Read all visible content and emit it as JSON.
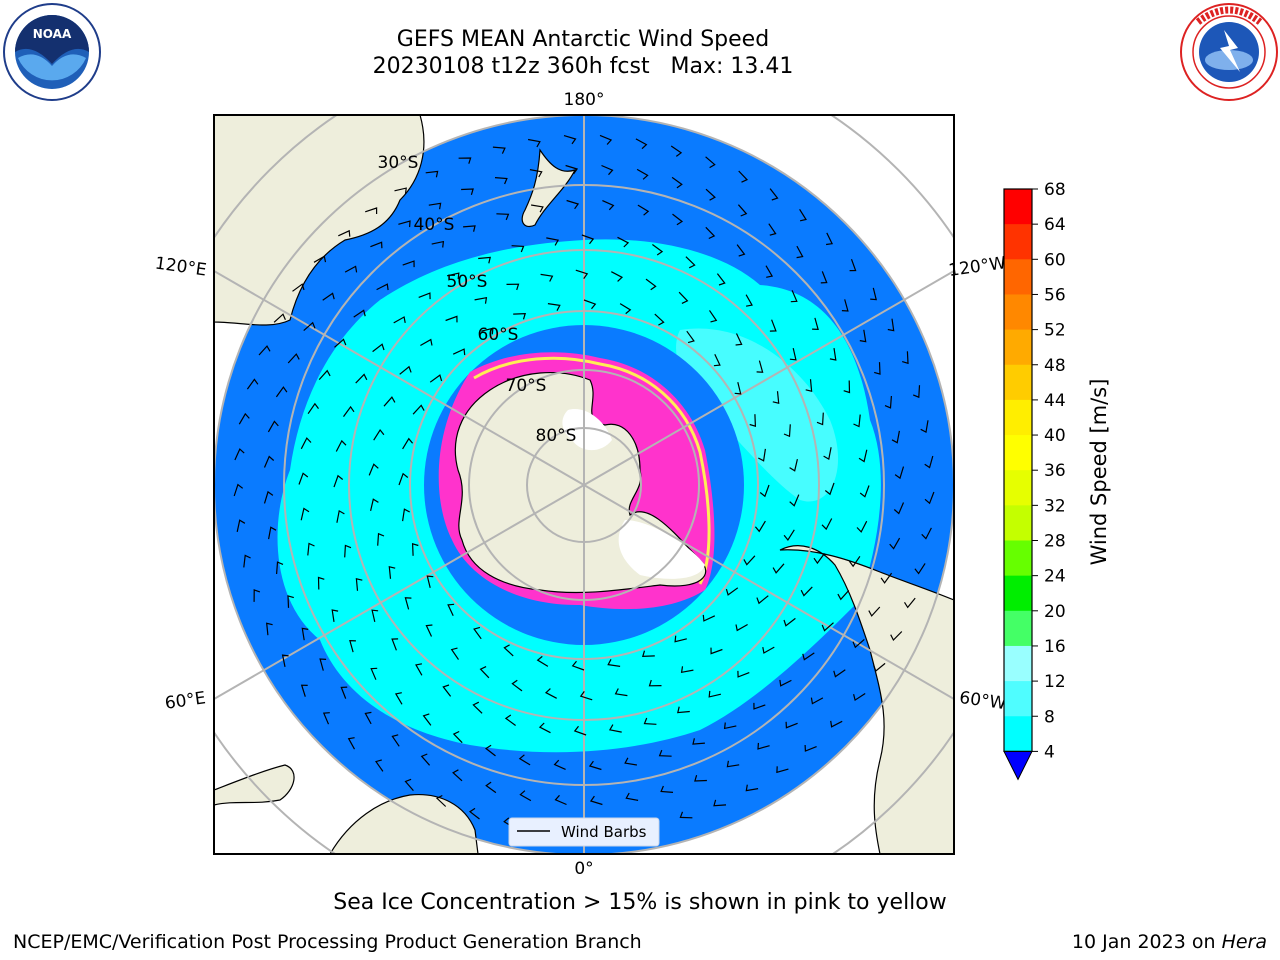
{
  "title": {
    "line1": "GEFS MEAN Antarctic Wind Speed",
    "line2": "20230108 t12z 360h fcst   Max: 13.41"
  },
  "map": {
    "projection": "south-polar-stereographic",
    "longitude_labels": {
      "top": "180°",
      "bottom": "0°",
      "upper_left": "120°E",
      "upper_right": "120°W",
      "lower_left": "60°E",
      "lower_right": "60°W"
    },
    "latitude_labels": [
      "30°S",
      "40°S",
      "50°S",
      "60°S",
      "70°S",
      "80°S"
    ],
    "legend_label": "Wind Barbs",
    "colors": {
      "land": "#eeeedc",
      "ocean_4_8": "#0a7bff",
      "ocean_8_12": "#00ffff",
      "ocean_12_16": "#4ffdff",
      "sea_ice": "#ff33cc",
      "grid": "#b4b4b4"
    }
  },
  "colorbar": {
    "label": "Wind Speed [m/s]",
    "ticks": [
      "68",
      "64",
      "60",
      "56",
      "52",
      "48",
      "44",
      "40",
      "36",
      "32",
      "28",
      "24",
      "20",
      "16",
      "12",
      "8",
      "4"
    ],
    "colors": [
      "#ff0000",
      "#ff3300",
      "#ff6600",
      "#ff8800",
      "#ffaa00",
      "#ffcc00",
      "#ffee00",
      "#ffff00",
      "#e6ff00",
      "#c4ff00",
      "#66ff00",
      "#00ee00",
      "#44ff66",
      "#99ffff",
      "#4ffdff",
      "#00ffff",
      "#0a7bff"
    ],
    "extend_color": "#0000ff"
  },
  "caption": "Sea Ice Concentration > 15% is shown in pink to yellow",
  "footer": {
    "left": "NCEP/EMC/Verification Post Processing Product Generation Branch",
    "right_prefix": "10 Jan 2023 on ",
    "right_machine": "Hera"
  }
}
